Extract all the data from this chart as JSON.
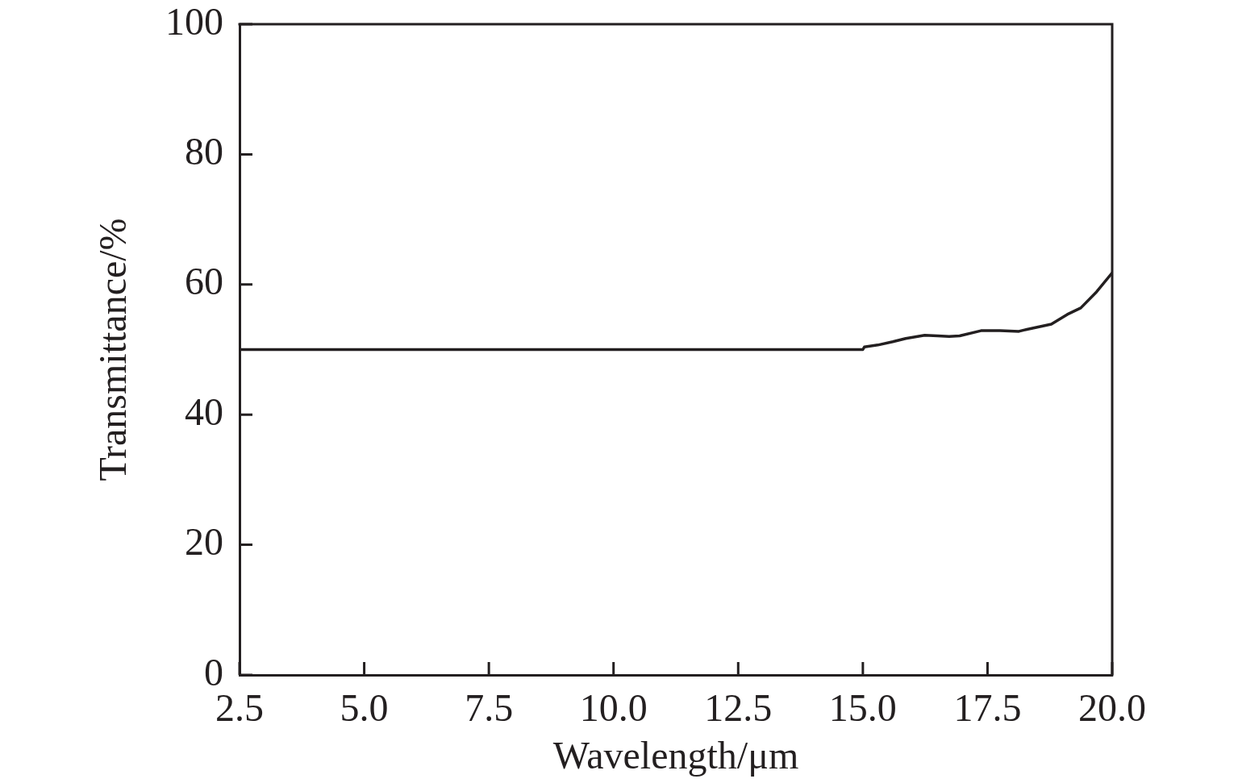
{
  "chart_data": {
    "type": "line",
    "xlabel": "Wavelength/μm",
    "ylabel": "Transmittance/%",
    "x": [
      2.5,
      15.0,
      15.03,
      15.3,
      15.6,
      15.86,
      16.24,
      16.5,
      16.73,
      16.94,
      17.37,
      17.75,
      18.13,
      18.29,
      18.78,
      19.1,
      19.37,
      19.69,
      20.0
    ],
    "values": [
      50,
      50,
      50.4,
      50.7,
      51.2,
      51.7,
      52.2,
      52.1,
      52.0,
      52.1,
      52.9,
      52.9,
      52.8,
      53.1,
      53.9,
      55.4,
      56.4,
      58.9,
      61.8
    ],
    "color": "#231f20",
    "xlim": [
      2.5,
      20.0
    ],
    "xticks": [
      2.5,
      {
        "value": 5,
        "label": "5.0"
      },
      7.5,
      {
        "value": 10,
        "label": "10.0"
      },
      12.5,
      {
        "value": 15,
        "label": "15.0"
      },
      17.5,
      {
        "value": 20,
        "label": "20.0"
      }
    ],
    "ylim": [
      0,
      100
    ],
    "yticks": [
      0,
      20,
      40,
      60,
      80,
      100
    ],
    "grid": false,
    "legend": false,
    "marker": "none",
    "line_style": "solid"
  }
}
